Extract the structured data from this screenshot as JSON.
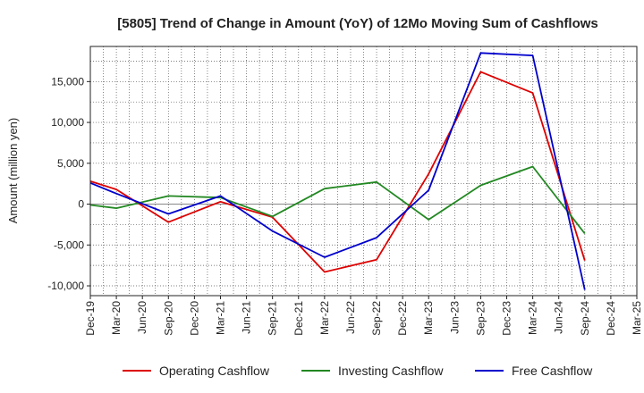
{
  "chart_data": {
    "type": "line",
    "title": "[5805]  Trend of Change in Amount (YoY) of 12Mo Moving Sum of Cashflows",
    "xlabel": "",
    "ylabel": "Amount (million yen)",
    "ylim": [
      -11200,
      19300
    ],
    "yticks": [
      -10000,
      -5000,
      0,
      5000,
      10000,
      15000
    ],
    "ytick_labels": [
      "-10,000",
      "-5,000",
      "0",
      "5,000",
      "10,000",
      "15,000"
    ],
    "grid": true,
    "legend_position": "bottom",
    "categories": [
      "Dec-19",
      "Mar-20",
      "Jun-20",
      "Sep-20",
      "Dec-20",
      "Mar-21",
      "Jun-21",
      "Sep-21",
      "Dec-21",
      "Mar-22",
      "Jun-22",
      "Sep-22",
      "Dec-22",
      "Mar-23",
      "Jun-23",
      "Sep-23",
      "Dec-23",
      "Mar-24",
      "Jun-24",
      "Sep-24",
      "Dec-24",
      "Mar-25"
    ],
    "series": [
      {
        "name": "Operating Cashflow",
        "color": "#dd0000",
        "values": [
          2800,
          1800,
          null,
          -2200,
          null,
          300,
          null,
          -1600,
          null,
          -8300,
          null,
          -6800,
          null,
          3700,
          null,
          16200,
          null,
          13600,
          null,
          -6900,
          null,
          null
        ]
      },
      {
        "name": "Investing Cashflow",
        "color": "#228822",
        "values": [
          -100,
          -500,
          null,
          1000,
          null,
          800,
          null,
          -1500,
          null,
          1900,
          null,
          2700,
          null,
          -1900,
          null,
          2300,
          null,
          4600,
          null,
          -3600,
          null,
          null
        ]
      },
      {
        "name": "Free Cashflow",
        "color": "#0000cc",
        "values": [
          2600,
          1300,
          null,
          -1200,
          null,
          1000,
          null,
          -3300,
          null,
          -6500,
          null,
          -4100,
          null,
          1700,
          null,
          18500,
          null,
          18200,
          null,
          -10500,
          null,
          null
        ]
      }
    ]
  }
}
